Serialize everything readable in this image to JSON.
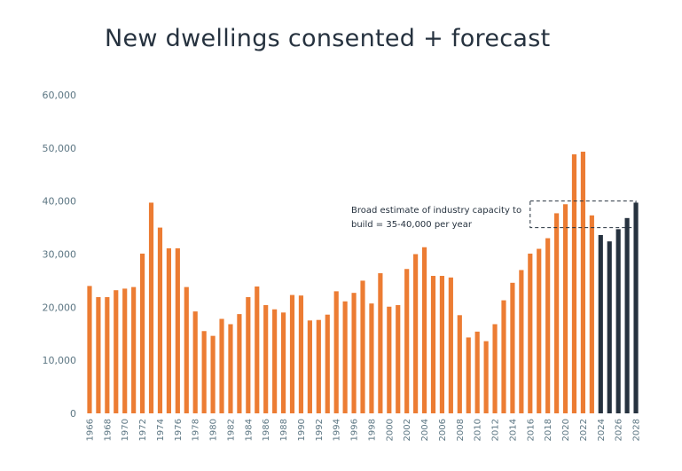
{
  "chart_data": {
    "type": "bar",
    "title": "New dwellings consented + forecast",
    "xlabel": "",
    "ylabel": "",
    "ylim": [
      0,
      60000
    ],
    "yticks": [
      0,
      10000,
      20000,
      30000,
      40000,
      50000,
      60000
    ],
    "ytick_labels": [
      "0",
      "10,000",
      "20,000",
      "30,000",
      "40,000",
      "50,000",
      "60,000"
    ],
    "grid": false,
    "colors": {
      "actual": "#ec7c33",
      "forecast": "#26323f",
      "text": "#26323f",
      "ticks": "#5c7683",
      "box": "#26323f"
    },
    "series": [
      {
        "name": "Consented",
        "x": [
          1966,
          1967,
          1968,
          1969,
          1970,
          1971,
          1972,
          1973,
          1974,
          1975,
          1976,
          1977,
          1978,
          1979,
          1980,
          1981,
          1982,
          1983,
          1984,
          1985,
          1986,
          1987,
          1988,
          1989,
          1990,
          1991,
          1992,
          1993,
          1994,
          1995,
          1996,
          1997,
          1998,
          1999,
          2000,
          2001,
          2002,
          2003,
          2004,
          2005,
          2006,
          2007,
          2008,
          2009,
          2010,
          2011,
          2012,
          2013,
          2014,
          2015,
          2016,
          2017,
          2018,
          2019,
          2020,
          2021,
          2022,
          2023
        ],
        "values": [
          24000,
          21900,
          21900,
          23200,
          23500,
          23800,
          30100,
          39700,
          35000,
          31100,
          31100,
          23800,
          19200,
          15500,
          14600,
          17800,
          16800,
          18700,
          21900,
          23900,
          20400,
          19600,
          19000,
          22300,
          22200,
          17500,
          17600,
          18600,
          23000,
          21100,
          22700,
          25000,
          20700,
          26400,
          20100,
          20400,
          27200,
          30000,
          31300,
          25900,
          25900,
          25600,
          18500,
          14300,
          15400,
          13600,
          16800,
          21300,
          24600,
          27000,
          30100,
          31000,
          33000,
          37700,
          39400,
          48800,
          49300,
          37300
        ]
      },
      {
        "name": "Forecast",
        "x": [
          2024,
          2025,
          2026,
          2027,
          2028
        ],
        "values": [
          33600,
          32400,
          34700,
          36800,
          39700
        ]
      }
    ],
    "xtick_labels": [
      "1966",
      "1968",
      "1970",
      "1972",
      "1974",
      "1976",
      "1978",
      "1980",
      "1982",
      "1984",
      "1986",
      "1988",
      "1990",
      "1992",
      "1994",
      "1996",
      "1998",
      "2000",
      "2002",
      "2004",
      "2006",
      "2008",
      "2010",
      "2012",
      "2014",
      "2016",
      "2018",
      "2020",
      "2022",
      "2024",
      "2026",
      "2028"
    ],
    "annotation": {
      "lines": [
        "Broad estimate of industry capacity to",
        "build = 35-40,000 per year"
      ],
      "range": [
        35000,
        40000
      ],
      "x_from": 2016.5,
      "x_to": 2028.5
    }
  }
}
